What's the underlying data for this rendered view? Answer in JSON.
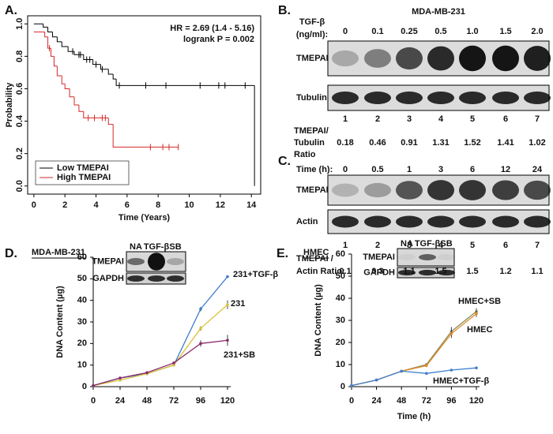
{
  "chart_data": [
    {
      "panel": "A.",
      "type": "step",
      "xlabel": "Time (Years)",
      "ylabel": "Probability",
      "annotations": [
        "HR = 2.69 (1.4 - 5.16)",
        "logrank P = 0.002"
      ],
      "xlim": [
        -0.4,
        14.6
      ],
      "ylim": [
        -0.05,
        1.05
      ],
      "xticks": [
        0,
        2,
        4,
        6,
        8,
        10,
        12,
        14
      ],
      "yticks": [
        {
          "value": 0,
          "label": "0.0"
        },
        0.2,
        0.4,
        0.6,
        0.8,
        {
          "value": 1,
          "label": "1.0"
        }
      ],
      "legend": "bottom-left",
      "series": [
        {
          "name": "Low TMEPAI",
          "color": "#000000",
          "x": [
            0,
            0.6,
            0.9,
            1.2,
            1.5,
            1.8,
            2.2,
            2.6,
            3.2,
            3.8,
            4.3,
            4.8,
            5.1,
            5.3,
            14.2
          ],
          "values": [
            1.0,
            0.98,
            0.95,
            0.92,
            0.89,
            0.86,
            0.83,
            0.81,
            0.78,
            0.75,
            0.72,
            0.69,
            0.66,
            0.62,
            0
          ],
          "censored": [
            2.5,
            2.9,
            3.0,
            3.4,
            3.6,
            4.0,
            4.4,
            5.5,
            7.2,
            8.5,
            10.7,
            11.9,
            12.3,
            13.6
          ]
        },
        {
          "name": "High TMEPAI",
          "color": "#d62728",
          "x": [
            0,
            0.7,
            0.9,
            1.1,
            1.3,
            1.5,
            1.8,
            2.0,
            2.3,
            2.6,
            2.9,
            3.2,
            4.8,
            5.1,
            9.3
          ],
          "values": [
            0.95,
            0.92,
            0.85,
            0.8,
            0.74,
            0.68,
            0.63,
            0.6,
            0.55,
            0.5,
            0.46,
            0.42,
            0.38,
            0.24,
            0.24
          ],
          "censored": [
            1.0,
            3.5,
            3.9,
            4.4,
            4.6,
            7.5,
            8.3,
            8.7,
            9.3
          ]
        }
      ]
    },
    {
      "panel": "D.",
      "type": "line",
      "title": "MDA-MB-231",
      "ylabel": "DNA Content (µg)",
      "x": [
        0,
        24,
        48,
        72,
        96,
        120
      ],
      "xlim": [
        0,
        120
      ],
      "xticks": [
        0,
        24,
        48,
        72,
        96,
        120
      ],
      "ylim": [
        0,
        60
      ],
      "yticks": [
        0,
        10,
        20,
        30,
        40,
        50,
        60
      ],
      "inset": {
        "lanes": [
          "NA",
          "TGF-β",
          "SB"
        ],
        "rows": [
          "TMEPAI",
          "GAPDH"
        ]
      },
      "series": [
        {
          "name": "231+TGF-β",
          "color": "#3f7fd0",
          "values": [
            0.5,
            4,
            6,
            10,
            36,
            51
          ],
          "errors": [
            0,
            0,
            0,
            0,
            1,
            0.5
          ]
        },
        {
          "name": "231",
          "color": "#d9c23a",
          "values": [
            0.5,
            3,
            6,
            10,
            27,
            38
          ],
          "errors": [
            0,
            0,
            0,
            0,
            1,
            2
          ]
        },
        {
          "name": "231+SB",
          "color": "#8b2a6b",
          "values": [
            0.5,
            4,
            6.5,
            11,
            20,
            21.5
          ],
          "errors": [
            0,
            0,
            0,
            0,
            1.5,
            2.5
          ]
        }
      ]
    },
    {
      "panel": "E.",
      "type": "line",
      "title": "HMEC",
      "ylabel": "DNA Content (µg)",
      "xlabel": "Time (h)",
      "x": [
        0,
        24,
        48,
        72,
        96,
        120
      ],
      "xlim": [
        0,
        120
      ],
      "xticks": [
        0,
        24,
        48,
        72,
        96,
        120
      ],
      "ylim": [
        0,
        60
      ],
      "yticks": [
        0,
        10,
        20,
        30,
        40,
        50,
        60
      ],
      "inset": {
        "lanes": [
          "NA",
          "TGF-β",
          "SB"
        ],
        "rows": [
          "TMEPAI",
          "GAPDH"
        ]
      },
      "series": [
        {
          "name": "HMEC+SB",
          "color": "#8a8a5a",
          "values": [
            0.5,
            3,
            7,
            10,
            25,
            34
          ],
          "errors": [
            0,
            0,
            0,
            0,
            2,
            1.5
          ]
        },
        {
          "name": "HMEC",
          "color": "#e08a2a",
          "values": [
            0.5,
            3,
            7,
            9.5,
            24,
            33
          ],
          "errors": [
            0,
            0,
            0,
            0,
            2,
            1.5
          ]
        },
        {
          "name": "HMEC+TGF-β",
          "color": "#3f7fd0",
          "values": [
            0.5,
            3,
            7,
            6,
            7.5,
            8.5
          ],
          "errors": [
            0,
            0,
            0,
            0,
            0.3,
            0.3
          ]
        }
      ]
    }
  ],
  "blots": [
    {
      "panel": "B.",
      "title": "MDA-MB-231",
      "treatment_label": [
        "TGF-β",
        "(ng/ml):"
      ],
      "treatments": [
        "0",
        "0.1",
        "0.25",
        "0.5",
        "1.0",
        "1.5",
        "2.0"
      ],
      "rows": [
        "TMEPAI",
        "Tubulin"
      ],
      "lanes": [
        1,
        2,
        3,
        4,
        5,
        6,
        7
      ],
      "ratio_label": [
        "TMEPAI/",
        "Tubulin",
        "Ratio"
      ],
      "ratios": [
        0.18,
        0.46,
        0.91,
        1.31,
        1.52,
        1.41,
        1.02
      ]
    },
    {
      "panel": "C.",
      "treatment_label": [
        "Time (h):"
      ],
      "treatments": [
        0,
        0.5,
        1,
        3,
        6,
        12,
        24
      ],
      "rows": [
        "TMEPAI",
        "Actin"
      ],
      "lanes": [
        1,
        2,
        3,
        4,
        5,
        6,
        7
      ],
      "ratio_label": [
        "TMEPAI /",
        "Actin Ratio:"
      ],
      "ratios": [
        0.1,
        0.3,
        1.1,
        1.5,
        1.5,
        1.2,
        1.1
      ]
    }
  ]
}
